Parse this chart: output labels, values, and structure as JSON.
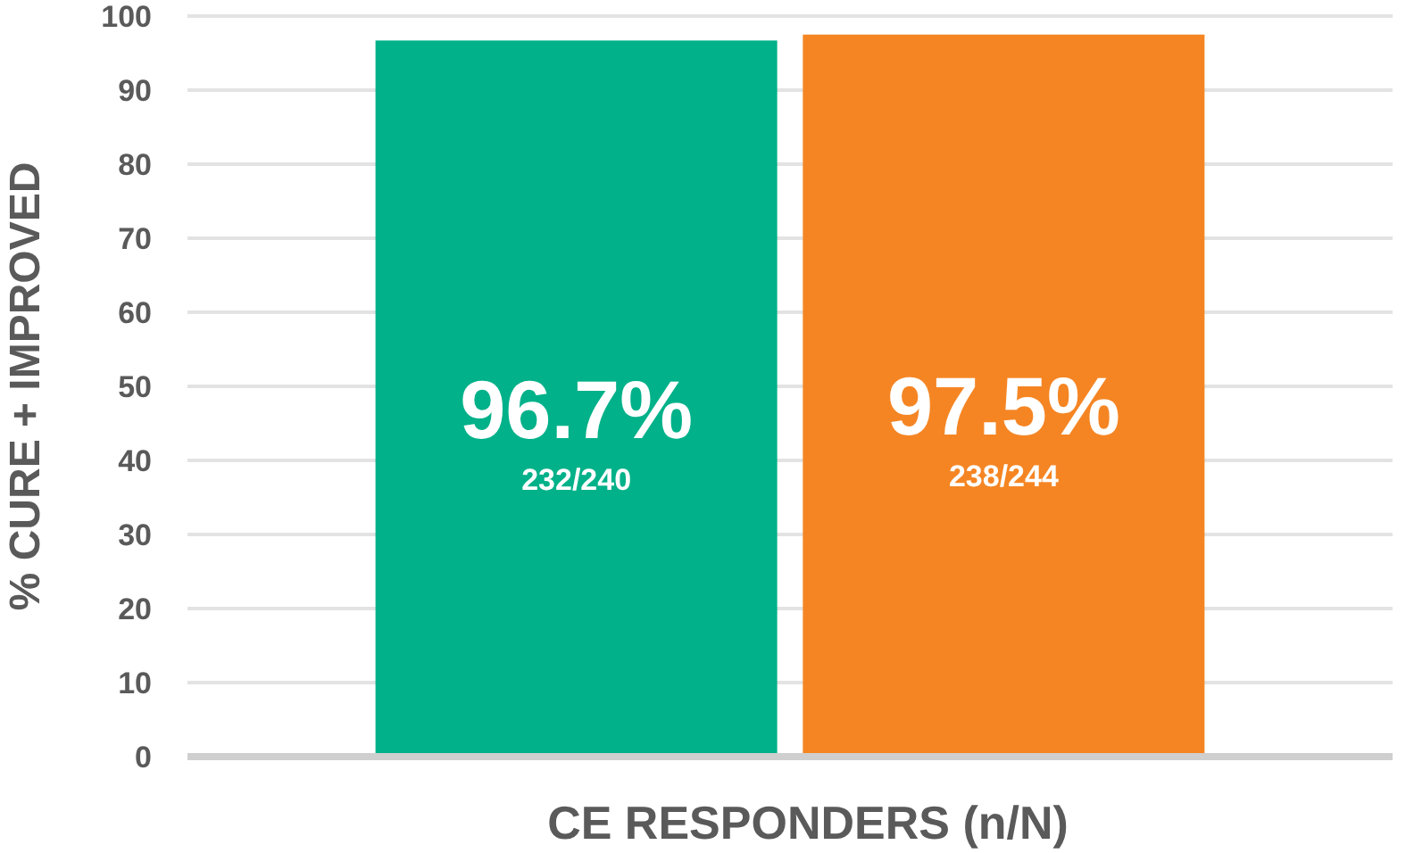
{
  "chart_data": {
    "type": "bar",
    "ylabel": "% CURE + IMPROVED",
    "xlabel": "CE RESPONDERS (n/N)",
    "categories": [
      null,
      null
    ],
    "values": [
      96.7,
      97.5
    ],
    "colors": [
      "#00b189",
      "#f58523"
    ],
    "value_labels": [
      "96.7%",
      "97.5%"
    ],
    "annotations": [
      "232/240",
      "238/244"
    ],
    "ylim": [
      0,
      100
    ],
    "yticks": [
      0,
      10,
      20,
      30,
      40,
      50,
      60,
      70,
      80,
      90,
      100
    ],
    "grid": "y"
  }
}
